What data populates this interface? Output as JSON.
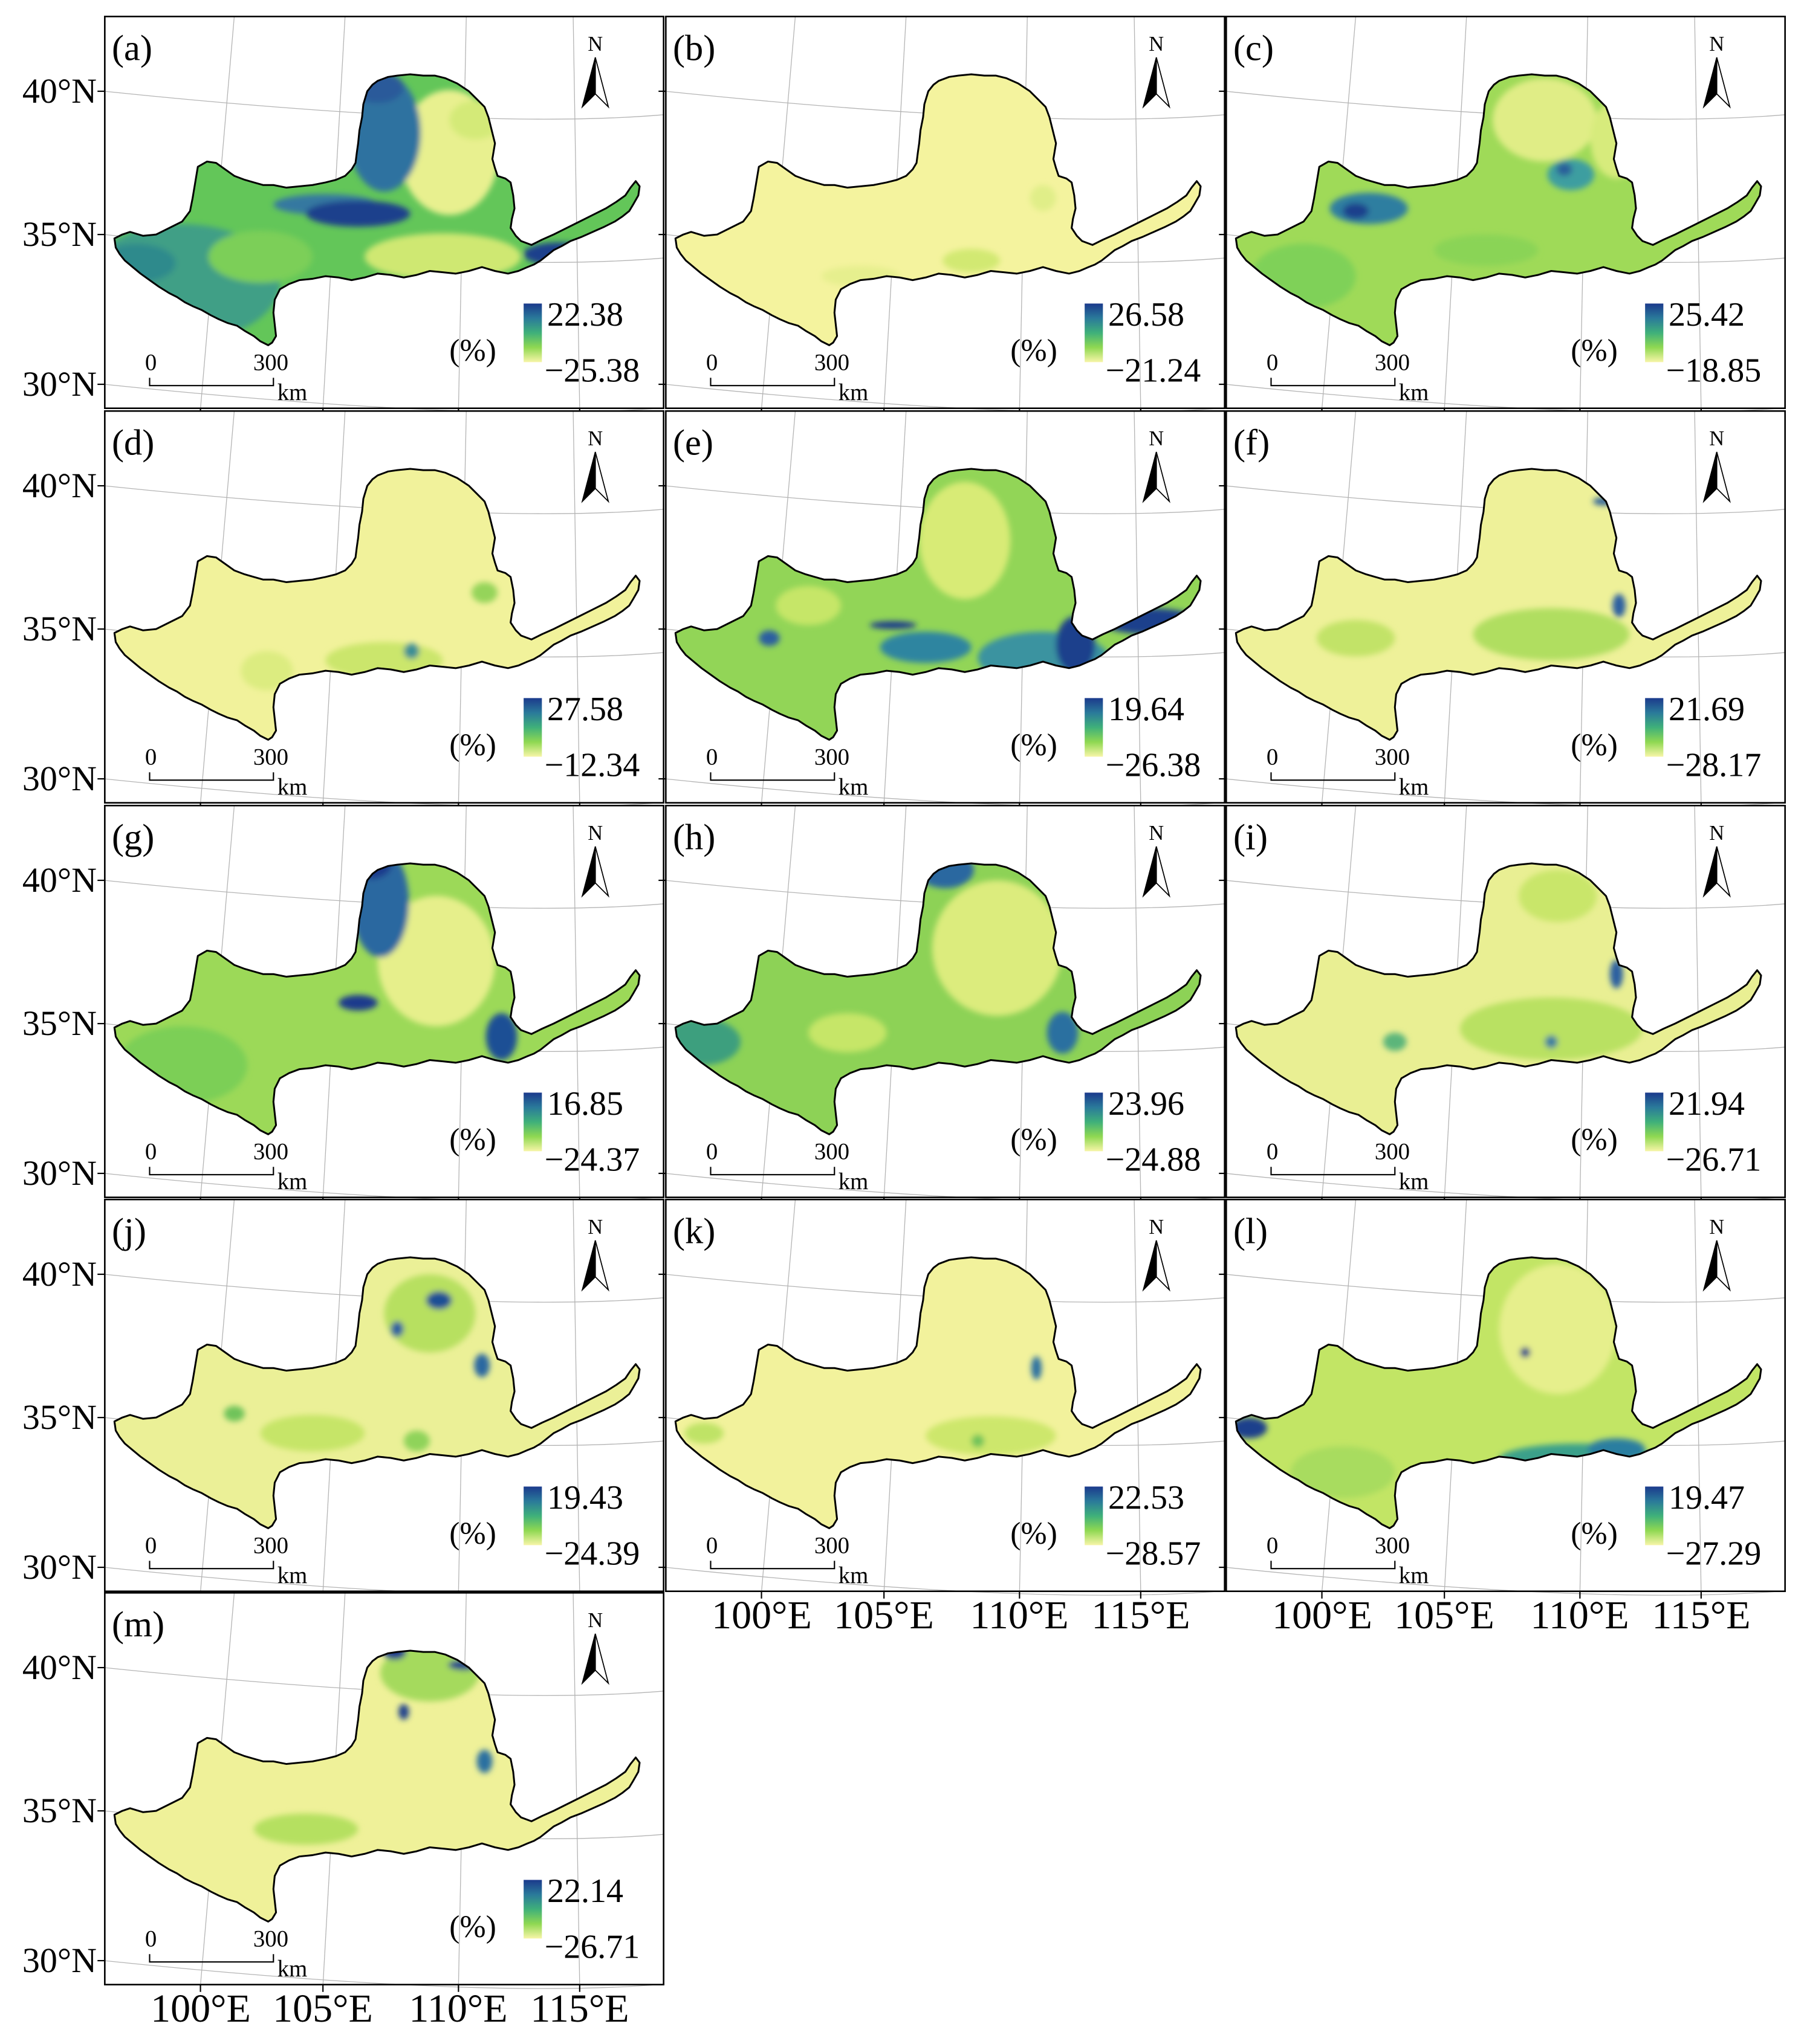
{
  "figure": {
    "latitude_labels": [
      "40°N",
      "35°N",
      "30°N"
    ],
    "longitude_labels": [
      "100°E",
      "105°E",
      "110°E",
      "115°E"
    ]
  },
  "panel_common": {
    "unit": "(%)",
    "scale_start": "0",
    "scale_end": "300",
    "scale_unit": "km",
    "north_label": "N"
  },
  "colormap": {
    "colors_high_to_low": [
      "#1b3a8c",
      "#2a7a9a",
      "#3fb07a",
      "#8fd852",
      "#f7f5a8"
    ]
  },
  "panels": [
    {
      "label": "(a)",
      "colorbar_max": "22.38",
      "colorbar_min": "−25.38"
    },
    {
      "label": "(b)",
      "colorbar_max": "26.58",
      "colorbar_min": "−21.24"
    },
    {
      "label": "(c)",
      "colorbar_max": "25.42",
      "colorbar_min": "−18.85"
    },
    {
      "label": "(d)",
      "colorbar_max": "27.58",
      "colorbar_min": "−12.34"
    },
    {
      "label": "(e)",
      "colorbar_max": "19.64",
      "colorbar_min": "−26.38"
    },
    {
      "label": "(f)",
      "colorbar_max": "21.69",
      "colorbar_min": "−28.17"
    },
    {
      "label": "(g)",
      "colorbar_max": "16.85",
      "colorbar_min": "−24.37"
    },
    {
      "label": "(h)",
      "colorbar_max": "23.96",
      "colorbar_min": "−24.88"
    },
    {
      "label": "(i)",
      "colorbar_max": "21.94",
      "colorbar_min": "−26.71"
    },
    {
      "label": "(j)",
      "colorbar_max": "19.43",
      "colorbar_min": "−24.39"
    },
    {
      "label": "(k)",
      "colorbar_max": "22.53",
      "colorbar_min": "−28.57"
    },
    {
      "label": "(l)",
      "colorbar_max": "19.47",
      "colorbar_min": "−27.29"
    },
    {
      "label": "(m)",
      "colorbar_max": "22.14",
      "colorbar_min": "−26.71"
    }
  ]
}
